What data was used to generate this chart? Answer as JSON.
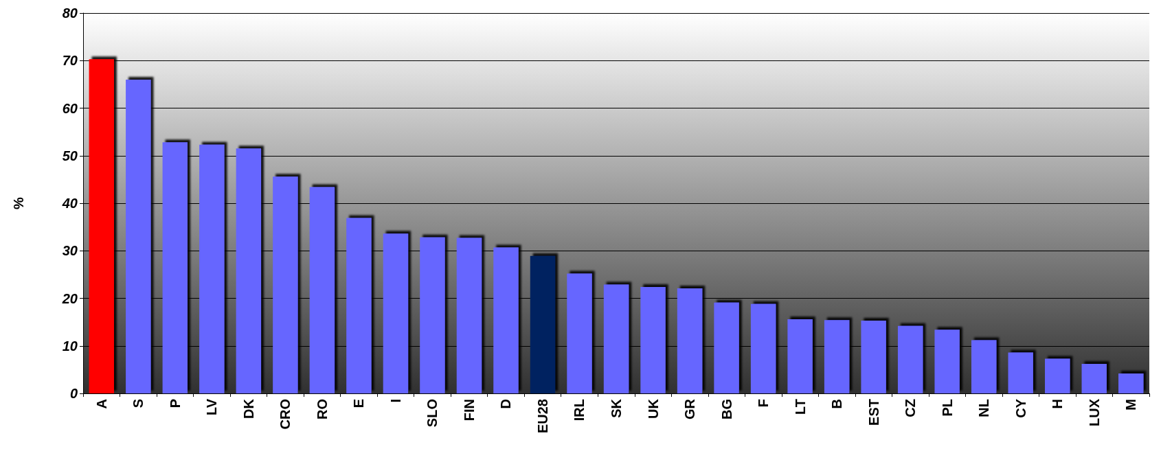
{
  "chart_data": {
    "type": "bar",
    "ylabel": "%",
    "categories": [
      "A",
      "S",
      "P",
      "LV",
      "DK",
      "CRO",
      "RO",
      "E",
      "I",
      "SLO",
      "FIN",
      "D",
      "EU28",
      "IRL",
      "SK",
      "UK",
      "GR",
      "BG",
      "F",
      "LT",
      "B",
      "EST",
      "CZ",
      "PL",
      "NL",
      "CY",
      "H",
      "LUX",
      "M"
    ],
    "values": [
      70.3,
      66.0,
      52.8,
      52.3,
      51.5,
      45.6,
      43.4,
      36.9,
      33.6,
      32.8,
      32.7,
      30.7,
      28.9,
      25.2,
      22.9,
      22.4,
      22.1,
      19.1,
      18.8,
      15.6,
      15.4,
      15.3,
      14.2,
      13.4,
      11.2,
      8.6,
      7.3,
      6.2,
      4.2
    ],
    "colors": [
      "#ff0000",
      "#6666ff",
      "#6666ff",
      "#6666ff",
      "#6666ff",
      "#6666ff",
      "#6666ff",
      "#6666ff",
      "#6666ff",
      "#6666ff",
      "#6666ff",
      "#6666ff",
      "#002060",
      "#6666ff",
      "#6666ff",
      "#6666ff",
      "#6666ff",
      "#6666ff",
      "#6666ff",
      "#6666ff",
      "#6666ff",
      "#6666ff",
      "#6666ff",
      "#6666ff",
      "#6666ff",
      "#6666ff",
      "#6666ff",
      "#6666ff",
      "#6666ff"
    ],
    "ylim": [
      0,
      80
    ],
    "yticks": [
      0,
      10,
      20,
      30,
      40,
      50,
      60,
      70,
      80
    ],
    "grid": "y"
  }
}
